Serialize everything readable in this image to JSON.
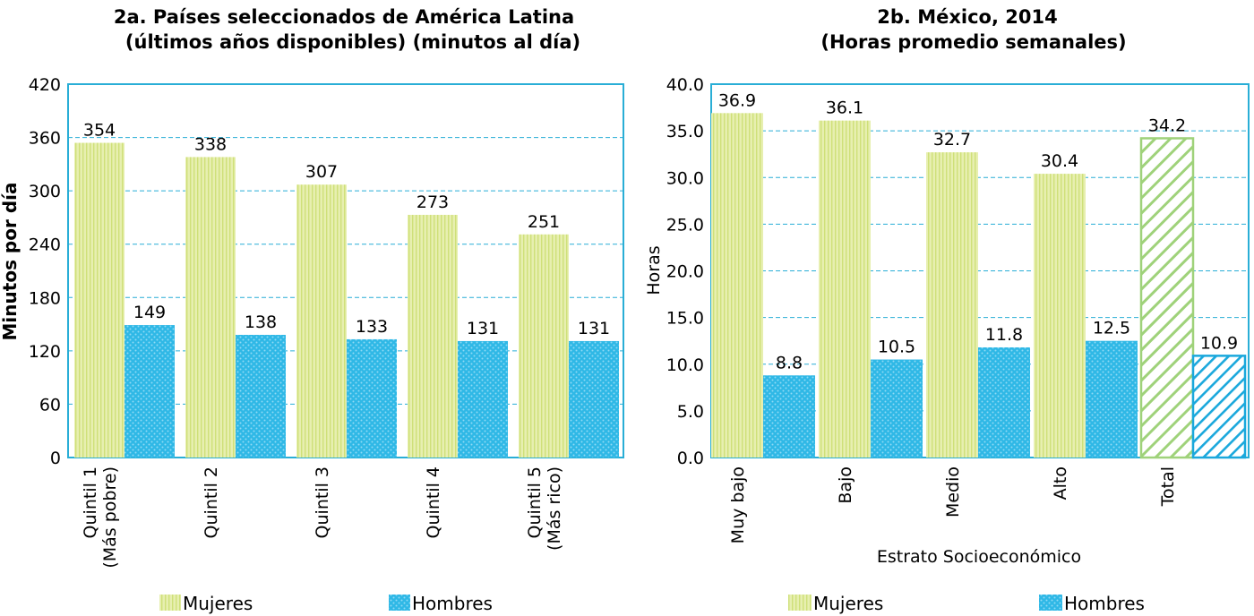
{
  "colors": {
    "frame": "#29aed6",
    "grid": "#29aed6",
    "mujeres_fill": "#e7efb0",
    "mujeres_stripe": "#cfe079",
    "hombres_fill": "#2fb8e6",
    "hombres_dot": "#8fdaf5",
    "total_mujeres_hatch": "#9fd27a",
    "total_hombres_hatch": "#1aa8dc"
  },
  "chart_data": [
    {
      "type": "bar",
      "title_line1": "2a. Países seleccionados de América Latina",
      "title_line2": "(últimos años disponibles) (minutos al día)",
      "xlabel": "",
      "ylabel": "Minutos por día",
      "ylim": [
        0,
        420
      ],
      "yticks": [
        "0",
        "60",
        "120",
        "180",
        "240",
        "300",
        "360",
        "420"
      ],
      "grid": true,
      "categories": [
        [
          "Quintil 1",
          "(Más pobre)"
        ],
        [
          "Quintil 2"
        ],
        [
          "Quintil 3"
        ],
        [
          "Quintil 4"
        ],
        [
          "Quintil 5",
          "(Más rico)"
        ]
      ],
      "series": [
        {
          "name": "Mujeres",
          "values": [
            354,
            338,
            307,
            273,
            251
          ],
          "labels": [
            "354",
            "338",
            "307",
            "273",
            "251"
          ]
        },
        {
          "name": "Hombres",
          "values": [
            149,
            138,
            133,
            131,
            131
          ],
          "labels": [
            "149",
            "138",
            "133",
            "131",
            "131"
          ]
        }
      ],
      "legend_position": "bottom"
    },
    {
      "type": "bar",
      "title_line1": "2b. México, 2014",
      "title_line2": "(Horas promedio semanales)",
      "xlabel": "Estrato Socioeconómico",
      "ylabel": "Horas",
      "ylim": [
        0,
        40
      ],
      "yticks": [
        "0.0",
        "5.0",
        "10.0",
        "15.0",
        "20.0",
        "25.0",
        "30.0",
        "35.0",
        "40.0"
      ],
      "grid": true,
      "categories": [
        [
          "Muy bajo"
        ],
        [
          "Bajo"
        ],
        [
          "Medio"
        ],
        [
          "Alto"
        ],
        [
          "Total"
        ]
      ],
      "series": [
        {
          "name": "Mujeres",
          "values": [
            36.9,
            36.1,
            32.7,
            30.4,
            34.2
          ],
          "labels": [
            "36.9",
            "36.1",
            "32.7",
            "30.4",
            "34.2"
          ]
        },
        {
          "name": "Hombres",
          "values": [
            8.8,
            10.5,
            11.8,
            12.5,
            10.9
          ],
          "labels": [
            "8.8",
            "10.5",
            "11.8",
            "12.5",
            "10.9"
          ]
        }
      ],
      "legend_position": "bottom"
    }
  ]
}
